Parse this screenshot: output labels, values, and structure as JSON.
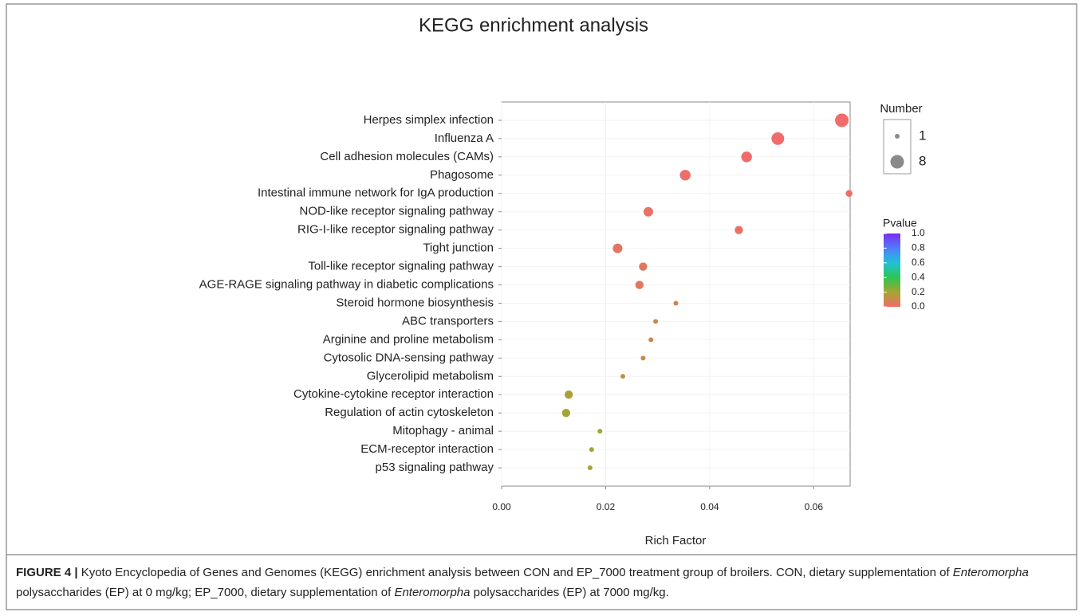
{
  "chart_data": {
    "type": "scatter",
    "title": "KEGG enrichment analysis",
    "x_label": "Rich Factor",
    "categories": [
      "Herpes simplex infection",
      "Influenza A",
      "Cell adhesion molecules (CAMs)",
      "Phagosome",
      "Intestinal immune network for IgA production",
      "NOD-like receptor signaling pathway",
      "RIG-I-like receptor signaling pathway",
      "Tight junction",
      "Toll-like receptor signaling pathway",
      "AGE-RAGE signaling pathway in diabetic complications",
      "Steroid hormone biosynthesis",
      "ABC transporters",
      "Arginine and proline metabolism",
      "Cytosolic DNA-sensing pathway",
      "Glycerolipid metabolism",
      "Cytokine-cytokine receptor interaction",
      "Regulation of actin cytoskeleton",
      "Mitophagy - animal",
      "ECM-receptor interaction",
      "p53 signaling pathway"
    ],
    "x": [
      0.0654,
      0.0531,
      0.0471,
      0.0353,
      0.0668,
      0.0282,
      0.0456,
      0.0223,
      0.0272,
      0.0265,
      0.0335,
      0.0296,
      0.0287,
      0.0272,
      0.0233,
      0.0129,
      0.0124,
      0.0189,
      0.0173,
      0.017
    ],
    "sizes": [
      8,
      7,
      5,
      5,
      2,
      4,
      3,
      4,
      3,
      3,
      1,
      1,
      1,
      1,
      1,
      3,
      3,
      1,
      1,
      1
    ],
    "pvalues": [
      0.001,
      0.001,
      0.005,
      0.01,
      0.02,
      0.02,
      0.02,
      0.03,
      0.04,
      0.04,
      0.09,
      0.1,
      0.1,
      0.11,
      0.14,
      0.18,
      0.2,
      0.2,
      0.2,
      0.2
    ],
    "xlim": [
      0,
      0.067
    ],
    "xticks": [
      {
        "value": 0,
        "label": "0.00"
      },
      {
        "value": 0.02,
        "label": "0.02"
      },
      {
        "value": 0.04,
        "label": "0.04"
      },
      {
        "value": 0.06,
        "label": "0.06"
      }
    ],
    "grid": true,
    "size_legend_title": "Number",
    "size_ticks": [
      1,
      8
    ],
    "color_legend_title": "Pvalue",
    "clim": [
      0,
      1
    ],
    "cticks": [
      {
        "value": 0,
        "label": "0.0"
      },
      {
        "value": 0.2,
        "label": "0.2"
      },
      {
        "value": 0.4,
        "label": "0.4"
      },
      {
        "value": 0.6,
        "label": "0.6"
      },
      {
        "value": 0.8,
        "label": "0.8"
      },
      {
        "value": 1,
        "label": "1.0"
      }
    ],
    "colorscale": [
      "#f26b6b",
      "#a5a432",
      "#2cc552",
      "#1fc2d6",
      "#4f7dff",
      "#7b2cf0"
    ],
    "size_legend_color": "#8a8a8a"
  },
  "caption": {
    "label": "FIGURE 4 |",
    "parts": [
      " Kyoto Encyclopedia of Genes and Genomes (KEGG) enrichment analysis between CON and EP_7000 treatment group of broilers. CON, dietary supplementation of ",
      "Enteromorpha",
      " polysaccharides (EP) at 0 mg/kg; EP_7000, dietary supplementation of ",
      "Enteromorpha",
      " polysaccharides (EP) at 7000 mg/kg."
    ]
  }
}
